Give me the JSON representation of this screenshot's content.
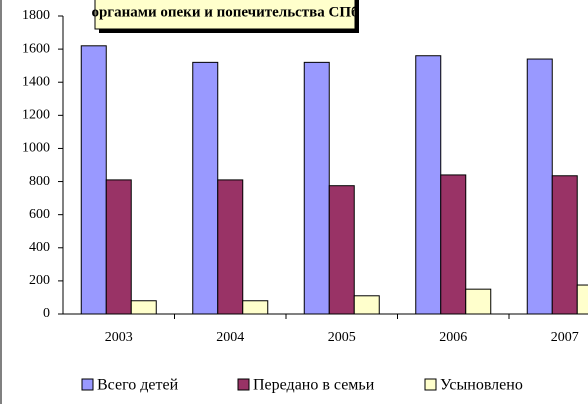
{
  "chart_data": {
    "type": "bar",
    "title": "органами опеки и попечительства СПб",
    "categories": [
      "2003",
      "2004",
      "2005",
      "2006",
      "2007"
    ],
    "series": [
      {
        "name": "Всего детей",
        "color": "#9999ff",
        "values": [
          1620,
          1520,
          1520,
          1560,
          1540
        ]
      },
      {
        "name": "Передано в семьи",
        "color": "#993366",
        "values": [
          810,
          810,
          775,
          840,
          835
        ]
      },
      {
        "name": "Усыновлено",
        "color": "#ffffcc",
        "values": [
          80,
          80,
          110,
          150,
          175
        ]
      }
    ],
    "ylim": [
      0,
      1800
    ],
    "yticks": [
      0,
      200,
      400,
      600,
      800,
      1000,
      1200,
      1400,
      1600,
      1800
    ],
    "grid": false,
    "legend": "bottom"
  }
}
